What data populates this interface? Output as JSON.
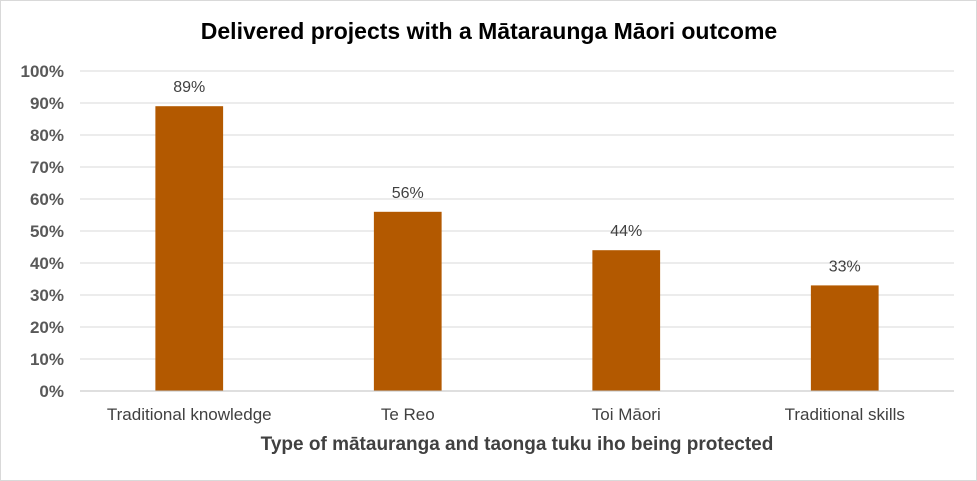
{
  "chart_data": {
    "type": "bar",
    "title": "Delivered projects with a Mātaraunga Māori outcome",
    "xlabel": "Type of mātauranga and taonga tuku iho being protected",
    "ylabel": "",
    "categories": [
      "Traditional knowledge",
      "Te Reo",
      "Toi Māori",
      "Traditional skills"
    ],
    "values": [
      89,
      56,
      44,
      33
    ],
    "data_labels": [
      "89%",
      "56%",
      "44%",
      "33%"
    ],
    "ylim": [
      0,
      100
    ],
    "yticks": [
      "0%",
      "10%",
      "20%",
      "30%",
      "40%",
      "50%",
      "60%",
      "70%",
      "80%",
      "90%",
      "100%"
    ],
    "grid": true,
    "legend": "none",
    "bar_color": "#b35900"
  }
}
